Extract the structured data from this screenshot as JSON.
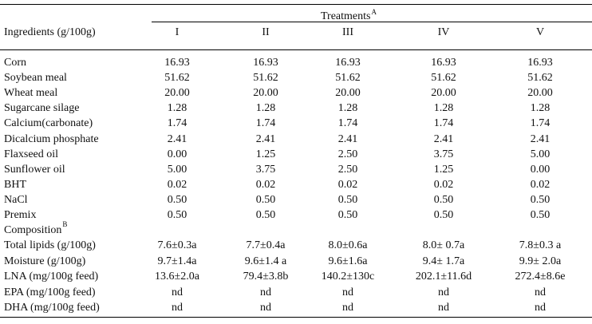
{
  "header": {
    "treatments_label": "Treatments",
    "treatments_sup": "A",
    "ingredients_label": "Ingredients (g/100g)",
    "columns": [
      "I",
      "II",
      "III",
      "IV",
      "V"
    ]
  },
  "ingredient_rows": [
    {
      "label": "Corn",
      "values": [
        "16.93",
        "16.93",
        "16.93",
        "16.93",
        "16.93"
      ]
    },
    {
      "label": "Soybean meal",
      "values": [
        "51.62",
        "51.62",
        "51.62",
        "51.62",
        "51.62"
      ]
    },
    {
      "label": "Wheat meal",
      "values": [
        "20.00",
        "20.00",
        "20.00",
        "20.00",
        "20.00"
      ]
    },
    {
      "label": "Sugarcane silage",
      "values": [
        "1.28",
        "1.28",
        "1.28",
        "1.28",
        "1.28"
      ]
    },
    {
      "label": "Calcium(carbonate)",
      "values": [
        "1.74",
        "1.74",
        "1.74",
        "1.74",
        "1.74"
      ]
    },
    {
      "label": "Dicalcium phosphate",
      "values": [
        "2.41",
        "2.41",
        "2.41",
        "2.41",
        "2.41"
      ]
    },
    {
      "label": "Flaxseed oil",
      "values": [
        "0.00",
        "1.25",
        "2.50",
        "3.75",
        "5.00"
      ]
    },
    {
      "label": "Sunflower oil",
      "values": [
        "5.00",
        "3.75",
        "2.50",
        "1.25",
        "0.00"
      ]
    },
    {
      "label": "BHT",
      "values": [
        "0.02",
        "0.02",
        "0.02",
        "0.02",
        "0.02"
      ]
    },
    {
      "label": "NaCl",
      "values": [
        "0.50",
        "0.50",
        "0.50",
        "0.50",
        "0.50"
      ]
    },
    {
      "label": "Premix",
      "values": [
        "0.50",
        "0.50",
        "0.50",
        "0.50",
        "0.50"
      ]
    }
  ],
  "composition": {
    "label": "Composition",
    "sup": "B",
    "rows": [
      {
        "label": "Total lipids (g/100g)",
        "values": [
          "7.6±0.3a",
          "7.7±0.4a",
          "8.0±0.6a",
          "8.0± 0.7a",
          "7.8±0.3 a"
        ]
      },
      {
        "label": "Moisture (g/100g)",
        "values": [
          "9.7±1.4a",
          "9.6±1.4 a",
          "9.6±1.6a",
          "9.4± 1.7a",
          "9.9± 2.0a"
        ]
      },
      {
        "label": "LNA (mg/100g feed)",
        "values": [
          "13.6±2.0a",
          "79.4±3.8b",
          "140.2±130c",
          "202.1±11.6d",
          "272.4±8.6e"
        ]
      },
      {
        "label": "EPA (mg/100g feed)",
        "values": [
          "nd",
          "nd",
          "nd",
          "nd",
          "nd"
        ]
      },
      {
        "label": "DHA (mg/100g feed)",
        "values": [
          "nd",
          "nd",
          "nd",
          "nd",
          "nd"
        ]
      }
    ]
  }
}
